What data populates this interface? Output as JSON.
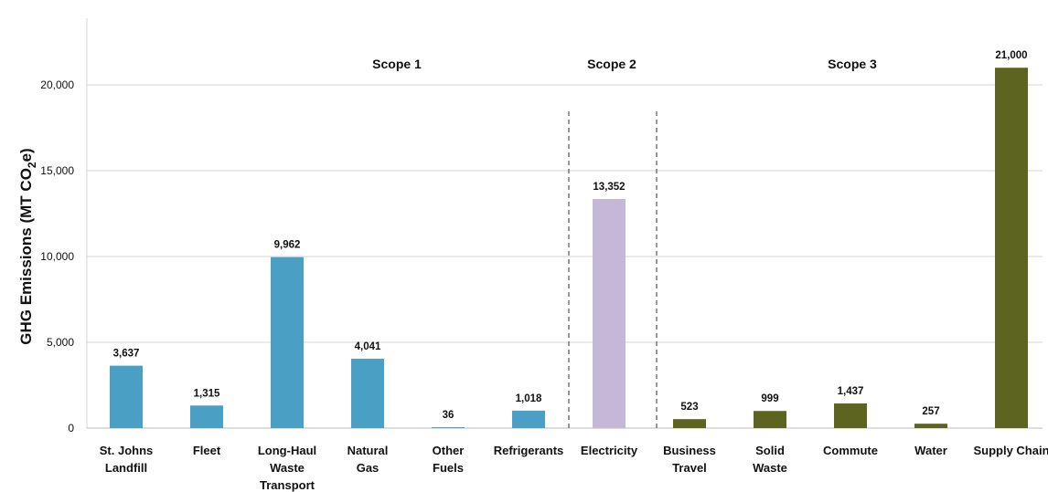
{
  "chart_data": {
    "type": "bar",
    "ylabel": "GHG Emissions (MT CO",
    "ylabel_sub": "2",
    "ylabel_end": "e)",
    "ylim": [
      0,
      22000
    ],
    "yticks": [
      0,
      5000,
      10000,
      15000,
      20000
    ],
    "ytick_labels": [
      "0",
      "5,000",
      "10,000",
      "15,000",
      "20,000"
    ],
    "grid": true,
    "groups": [
      {
        "label": "Scope 1",
        "first": 0,
        "last": 5
      },
      {
        "label": "Scope 2",
        "first": 6,
        "last": 6
      },
      {
        "label": "Scope 3",
        "first": 7,
        "last": 11
      }
    ],
    "categories": [
      [
        "St. Johns",
        "Landfill"
      ],
      [
        "Fleet"
      ],
      [
        "Long-Haul",
        "Waste",
        "Transport"
      ],
      [
        "Natural",
        "Gas"
      ],
      [
        "Other",
        "Fuels"
      ],
      [
        "Refrigerants"
      ],
      [
        "Electricity"
      ],
      [
        "Business",
        "Travel"
      ],
      [
        "Solid",
        "Waste"
      ],
      [
        "Commute"
      ],
      [
        "Water"
      ],
      [
        "Supply Chain"
      ]
    ],
    "values": [
      3637,
      1315,
      9962,
      4041,
      36,
      1018,
      13352,
      523,
      999,
      1437,
      257,
      21000
    ],
    "value_labels": [
      "3,637",
      "1,315",
      "9,962",
      "4,041",
      "36",
      "1,018",
      "13,352",
      "523",
      "999",
      "1,437",
      "257",
      "21,000"
    ],
    "colors": [
      "#4a9fc4",
      "#4a9fc4",
      "#4a9fc4",
      "#4a9fc4",
      "#4a9fc4",
      "#4a9fc4",
      "#c5b8d6",
      "#5c6420",
      "#5c6420",
      "#5c6420",
      "#5c6420",
      "#5c6420"
    ]
  }
}
